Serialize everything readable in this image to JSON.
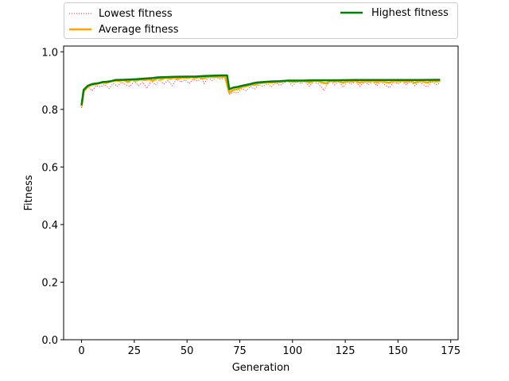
{
  "chart_data": {
    "type": "line",
    "xlabel": "Generation",
    "ylabel": "Fitness",
    "xlim": [
      -8.5,
      178.5
    ],
    "ylim": [
      0.0,
      1.02
    ],
    "xticks": [
      0,
      25,
      50,
      75,
      100,
      125,
      150,
      175
    ],
    "yticks": [
      0.0,
      0.2,
      0.4,
      0.6,
      0.8,
      1.0
    ],
    "ytick_labels": [
      "0.0",
      "0.2",
      "0.4",
      "0.6",
      "0.8",
      "1.0"
    ],
    "legend": {
      "placement": "top",
      "entries": [
        "Lowest fitness",
        "Average fitness",
        "Highest fitness"
      ]
    },
    "series": [
      {
        "name": "Lowest fitness",
        "color": "#d62728",
        "style": "dotted",
        "points": [
          [
            0,
            0.805
          ],
          [
            1,
            0.855
          ],
          [
            2,
            0.872
          ],
          [
            3,
            0.878
          ],
          [
            5,
            0.865
          ],
          [
            7,
            0.883
          ],
          [
            9,
            0.878
          ],
          [
            11,
            0.887
          ],
          [
            13,
            0.872
          ],
          [
            15,
            0.89
          ],
          [
            17,
            0.88
          ],
          [
            19,
            0.895
          ],
          [
            21,
            0.885
          ],
          [
            23,
            0.88
          ],
          [
            25,
            0.898
          ],
          [
            27,
            0.882
          ],
          [
            29,
            0.895
          ],
          [
            31,
            0.873
          ],
          [
            33,
            0.9
          ],
          [
            35,
            0.885
          ],
          [
            37,
            0.902
          ],
          [
            39,
            0.888
          ],
          [
            41,
            0.9
          ],
          [
            43,
            0.882
          ],
          [
            45,
            0.905
          ],
          [
            47,
            0.895
          ],
          [
            49,
            0.903
          ],
          [
            51,
            0.89
          ],
          [
            53,
            0.906
          ],
          [
            55,
            0.898
          ],
          [
            57,
            0.908
          ],
          [
            58,
            0.89
          ],
          [
            60,
            0.91
          ],
          [
            62,
            0.9
          ],
          [
            64,
            0.912
          ],
          [
            66,
            0.904
          ],
          [
            68,
            0.912
          ],
          [
            70,
            0.852
          ],
          [
            72,
            0.86
          ],
          [
            74,
            0.857
          ],
          [
            76,
            0.872
          ],
          [
            78,
            0.865
          ],
          [
            80,
            0.88
          ],
          [
            82,
            0.87
          ],
          [
            84,
            0.886
          ],
          [
            86,
            0.88
          ],
          [
            88,
            0.89
          ],
          [
            90,
            0.878
          ],
          [
            92,
            0.893
          ],
          [
            94,
            0.883
          ],
          [
            96,
            0.892
          ],
          [
            98,
            0.898
          ],
          [
            100,
            0.882
          ],
          [
            102,
            0.896
          ],
          [
            104,
            0.89
          ],
          [
            106,
            0.897
          ],
          [
            108,
            0.88
          ],
          [
            110,
            0.897
          ],
          [
            112,
            0.89
          ],
          [
            114,
            0.875
          ],
          [
            115,
            0.865
          ],
          [
            116,
            0.882
          ],
          [
            118,
            0.898
          ],
          [
            120,
            0.885
          ],
          [
            122,
            0.897
          ],
          [
            124,
            0.877
          ],
          [
            126,
            0.895
          ],
          [
            128,
            0.888
          ],
          [
            130,
            0.898
          ],
          [
            132,
            0.88
          ],
          [
            134,
            0.896
          ],
          [
            136,
            0.886
          ],
          [
            138,
            0.898
          ],
          [
            140,
            0.882
          ],
          [
            142,
            0.896
          ],
          [
            144,
            0.884
          ],
          [
            146,
            0.875
          ],
          [
            148,
            0.897
          ],
          [
            150,
            0.888
          ],
          [
            152,
            0.898
          ],
          [
            154,
            0.885
          ],
          [
            156,
            0.897
          ],
          [
            158,
            0.882
          ],
          [
            160,
            0.896
          ],
          [
            162,
            0.886
          ],
          [
            164,
            0.878
          ],
          [
            166,
            0.897
          ],
          [
            168,
            0.886
          ],
          [
            170,
            0.892
          ]
        ]
      },
      {
        "name": "Average fitness",
        "color": "#ffa500",
        "style": "solid",
        "points": [
          [
            0,
            0.81
          ],
          [
            1,
            0.862
          ],
          [
            3,
            0.88
          ],
          [
            5,
            0.885
          ],
          [
            8,
            0.89
          ],
          [
            10,
            0.893
          ],
          [
            12,
            0.892
          ],
          [
            14,
            0.898
          ],
          [
            16,
            0.9
          ],
          [
            18,
            0.899
          ],
          [
            20,
            0.902
          ],
          [
            22,
            0.895
          ],
          [
            24,
            0.903
          ],
          [
            26,
            0.9
          ],
          [
            28,
            0.904
          ],
          [
            30,
            0.902
          ],
          [
            32,
            0.905
          ],
          [
            34,
            0.9
          ],
          [
            36,
            0.908
          ],
          [
            38,
            0.905
          ],
          [
            40,
            0.91
          ],
          [
            42,
            0.906
          ],
          [
            44,
            0.91
          ],
          [
            46,
            0.907
          ],
          [
            48,
            0.911
          ],
          [
            50,
            0.909
          ],
          [
            52,
            0.912
          ],
          [
            54,
            0.91
          ],
          [
            56,
            0.912
          ],
          [
            58,
            0.908
          ],
          [
            60,
            0.914
          ],
          [
            62,
            0.912
          ],
          [
            64,
            0.914
          ],
          [
            66,
            0.912
          ],
          [
            68,
            0.914
          ],
          [
            70,
            0.858
          ],
          [
            72,
            0.868
          ],
          [
            74,
            0.87
          ],
          [
            76,
            0.878
          ],
          [
            78,
            0.88
          ],
          [
            80,
            0.886
          ],
          [
            82,
            0.885
          ],
          [
            84,
            0.891
          ],
          [
            86,
            0.892
          ],
          [
            88,
            0.895
          ],
          [
            90,
            0.893
          ],
          [
            92,
            0.896
          ],
          [
            94,
            0.895
          ],
          [
            96,
            0.897
          ],
          [
            98,
            0.9
          ],
          [
            100,
            0.895
          ],
          [
            102,
            0.899
          ],
          [
            104,
            0.898
          ],
          [
            106,
            0.9
          ],
          [
            108,
            0.893
          ],
          [
            110,
            0.9
          ],
          [
            112,
            0.899
          ],
          [
            114,
            0.893
          ],
          [
            116,
            0.89
          ],
          [
            118,
            0.9
          ],
          [
            120,
            0.896
          ],
          [
            122,
            0.9
          ],
          [
            124,
            0.892
          ],
          [
            126,
            0.9
          ],
          [
            128,
            0.896
          ],
          [
            130,
            0.9
          ],
          [
            132,
            0.893
          ],
          [
            134,
            0.9
          ],
          [
            136,
            0.896
          ],
          [
            138,
            0.9
          ],
          [
            140,
            0.894
          ],
          [
            142,
            0.9
          ],
          [
            144,
            0.895
          ],
          [
            146,
            0.893
          ],
          [
            148,
            0.9
          ],
          [
            150,
            0.897
          ],
          [
            152,
            0.9
          ],
          [
            154,
            0.895
          ],
          [
            156,
            0.9
          ],
          [
            158,
            0.892
          ],
          [
            160,
            0.9
          ],
          [
            162,
            0.896
          ],
          [
            164,
            0.893
          ],
          [
            166,
            0.9
          ],
          [
            168,
            0.897
          ],
          [
            170,
            0.899
          ]
        ]
      },
      {
        "name": "Highest fitness",
        "color": "#008000",
        "style": "solid",
        "points": [
          [
            0,
            0.815
          ],
          [
            1,
            0.868
          ],
          [
            3,
            0.882
          ],
          [
            5,
            0.888
          ],
          [
            8,
            0.891
          ],
          [
            10,
            0.895
          ],
          [
            12,
            0.896
          ],
          [
            14,
            0.898
          ],
          [
            16,
            0.902
          ],
          [
            20,
            0.903
          ],
          [
            26,
            0.905
          ],
          [
            30,
            0.907
          ],
          [
            34,
            0.909
          ],
          [
            36,
            0.911
          ],
          [
            40,
            0.912
          ],
          [
            44,
            0.913
          ],
          [
            50,
            0.914
          ],
          [
            54,
            0.914
          ],
          [
            58,
            0.916
          ],
          [
            62,
            0.917
          ],
          [
            66,
            0.918
          ],
          [
            69,
            0.918
          ],
          [
            70,
            0.87
          ],
          [
            72,
            0.876
          ],
          [
            74,
            0.878
          ],
          [
            76,
            0.882
          ],
          [
            78,
            0.885
          ],
          [
            80,
            0.888
          ],
          [
            82,
            0.892
          ],
          [
            84,
            0.894
          ],
          [
            86,
            0.895
          ],
          [
            88,
            0.896
          ],
          [
            90,
            0.897
          ],
          [
            94,
            0.898
          ],
          [
            98,
            0.9
          ],
          [
            104,
            0.9
          ],
          [
            110,
            0.901
          ],
          [
            120,
            0.901
          ],
          [
            130,
            0.902
          ],
          [
            140,
            0.902
          ],
          [
            150,
            0.902
          ],
          [
            160,
            0.902
          ],
          [
            170,
            0.903
          ]
        ]
      }
    ]
  }
}
